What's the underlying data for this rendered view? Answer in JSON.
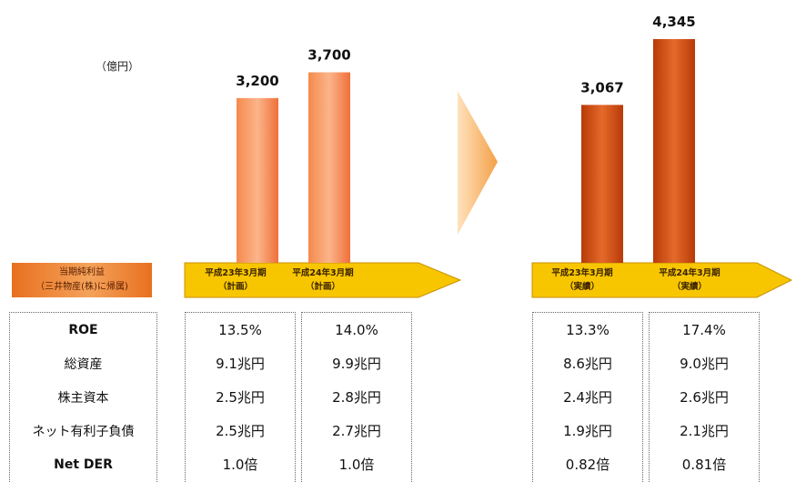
{
  "unit_label": "（億円）",
  "legend": {
    "line1": "当期純利益",
    "line2": "（三井物産(株)に帰属)"
  },
  "chart_data": [
    {
      "type": "bar",
      "categories": [
        "平成23年3月期（計画）",
        "平成24年3月期（計画）"
      ],
      "values": [
        3200,
        3700
      ],
      "value_labels": [
        "3,200",
        "3,700"
      ],
      "ylim": [
        0,
        4500
      ],
      "color": "#f47a3c"
    },
    {
      "type": "bar",
      "categories": [
        "平成23年3月期（実績）",
        "平成24年3月期（実績）"
      ],
      "values": [
        3067,
        4345
      ],
      "value_labels": [
        "3,067",
        "4,345"
      ],
      "ylim": [
        0,
        4500
      ],
      "color": "#c8460e"
    }
  ],
  "arrows": [
    {
      "periods": [
        {
          "line1": "平成23年3月期",
          "line2": "（計画）"
        },
        {
          "line1": "平成24年3月期",
          "line2": "（計画）"
        }
      ]
    },
    {
      "periods": [
        {
          "line1": "平成23年3月期",
          "line2": "（実績）"
        },
        {
          "line1": "平成24年3月期",
          "line2": "（実績）"
        }
      ]
    }
  ],
  "table": {
    "labels": [
      "ROE",
      "総資産",
      "株主資本",
      "ネット有利子負債",
      "Net DER"
    ],
    "columns": [
      [
        "13.5%",
        "9.1兆円",
        "2.5兆円",
        "2.5兆円",
        "1.0倍"
      ],
      [
        "14.0%",
        "9.9兆円",
        "2.8兆円",
        "2.7兆円",
        "1.0倍"
      ],
      [
        "13.3%",
        "8.6兆円",
        "2.4兆円",
        "1.9兆円",
        "0.82倍"
      ],
      [
        "17.4%",
        "9.0兆円",
        "2.6兆円",
        "2.1兆円",
        "0.81倍"
      ]
    ]
  }
}
